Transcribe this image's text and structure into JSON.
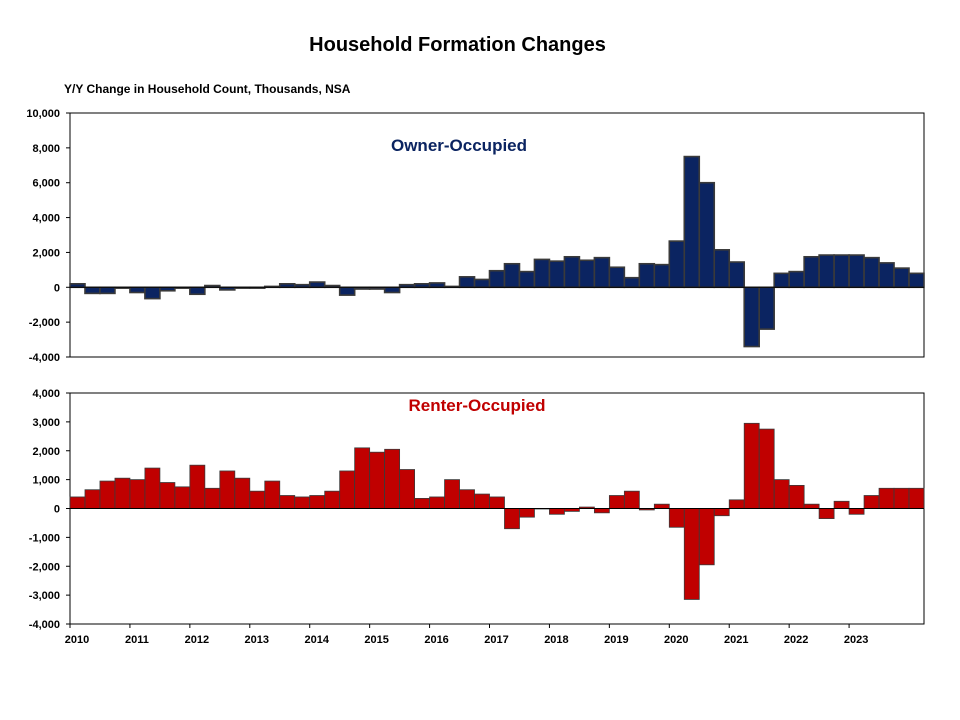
{
  "title": "Household Formation Changes",
  "subtitle": "Y/Y Change in Household Count, Thousands,  NSA",
  "chart_data": [
    {
      "type": "bar",
      "title": "Owner-Occupied",
      "color": "#0b2461",
      "edge_color": "#3a3a3a",
      "title_color": "#0b2461",
      "ylim": [
        -4000,
        10000
      ],
      "yticks": [
        -4000,
        -2000,
        0,
        2000,
        4000,
        6000,
        8000,
        10000
      ],
      "ytick_labels": [
        "-4,000",
        "-2,000",
        "0",
        "2,000",
        "4,000",
        "6,000",
        "8,000",
        "10,000"
      ],
      "grid": false,
      "x_start_year": 2010,
      "quarters_per_year": 4,
      "values": [
        200,
        -350,
        -350,
        -50,
        -300,
        -650,
        -200,
        -50,
        -400,
        100,
        -150,
        -50,
        -50,
        50,
        200,
        150,
        300,
        100,
        -450,
        -100,
        -100,
        -300,
        150,
        200,
        250,
        50,
        600,
        450,
        950,
        1350,
        900,
        1600,
        1500,
        1750,
        1550,
        1700,
        1150,
        550,
        1350,
        1300,
        2650,
        7500,
        6000,
        2150,
        1450,
        -3400,
        -2400,
        800,
        900,
        1750,
        1850,
        1850,
        1850,
        1700,
        1400,
        1100,
        800
      ]
    },
    {
      "type": "bar",
      "title": "Renter-Occupied",
      "color": "#c00000",
      "edge_color": "#3a3a3a",
      "title_color": "#c00000",
      "ylim": [
        -4000,
        4000
      ],
      "yticks": [
        -4000,
        -3000,
        -2000,
        -1000,
        0,
        1000,
        2000,
        3000,
        4000
      ],
      "ytick_labels": [
        "-4,000",
        "-3,000",
        "-2,000",
        "-1,000",
        "0",
        "1,000",
        "2,000",
        "3,000",
        "4,000"
      ],
      "grid": false,
      "x_start_year": 2010,
      "quarters_per_year": 4,
      "xtick_labels": [
        "2010",
        "2011",
        "2012",
        "2013",
        "2014",
        "2015",
        "2016",
        "2017",
        "2018",
        "2019",
        "2020",
        "2021",
        "2022",
        "2023"
      ],
      "values": [
        400,
        650,
        950,
        1050,
        1000,
        1400,
        900,
        750,
        1500,
        700,
        1300,
        1050,
        600,
        950,
        450,
        400,
        450,
        600,
        1300,
        2100,
        1950,
        2050,
        1350,
        350,
        400,
        1000,
        650,
        500,
        400,
        -700,
        -300,
        0,
        -200,
        -100,
        50,
        -150,
        450,
        600,
        -50,
        150,
        -650,
        -3150,
        -1950,
        -250,
        300,
        2950,
        2750,
        1000,
        800,
        150,
        -350,
        250,
        -200,
        450,
        700,
        700,
        700
      ]
    }
  ]
}
